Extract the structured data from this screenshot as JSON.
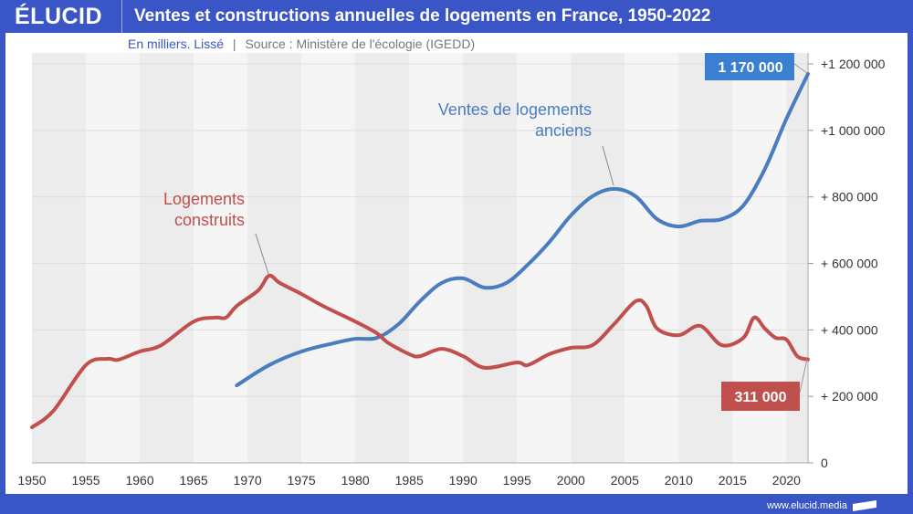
{
  "header": {
    "logo": "ÉLUCID",
    "title": "Ventes et constructions annuelles de logements en France, 1950-2022"
  },
  "subtitle": {
    "unit": "En milliers. Lissé",
    "separator": "|",
    "source": "Source : Ministère de l'écologie (IGEDD)"
  },
  "footer": {
    "url": "www.elucid.media"
  },
  "chart_data": {
    "type": "line",
    "title": "Ventes et constructions annuelles de logements en France, 1950-2022",
    "xlim": [
      1950,
      2022
    ],
    "ylim": [
      0,
      1200000
    ],
    "x_ticks": [
      1950,
      1955,
      1960,
      1965,
      1970,
      1975,
      1980,
      1985,
      1990,
      1995,
      2000,
      2005,
      2010,
      2015,
      2020
    ],
    "y_ticks": [
      {
        "v": 0,
        "label": "0"
      },
      {
        "v": 200000,
        "label": "+ 200 000"
      },
      {
        "v": 400000,
        "label": "+ 400 000"
      },
      {
        "v": 600000,
        "label": "+ 600 000"
      },
      {
        "v": 800000,
        "label": "+ 800 000"
      },
      {
        "v": 1000000,
        "label": "+1 000 000"
      },
      {
        "v": 1200000,
        "label": "+1 200 000"
      }
    ],
    "series": [
      {
        "name": "Ventes de logements anciens",
        "label_lines": [
          "Ventes de logements",
          "anciens"
        ],
        "color": "#4a7cc0",
        "end_label": "1 170 000",
        "end_color": "#3a7fd0",
        "x": [
          1969,
          1972,
          1975,
          1978,
          1980,
          1982,
          1984,
          1986,
          1988,
          1990,
          1992,
          1994,
          1996,
          1998,
          2000,
          2002,
          2004,
          2006,
          2008,
          2010,
          2012,
          2014,
          2016,
          2018,
          2020,
          2022
        ],
        "y": [
          233000,
          294000,
          335000,
          360000,
          373000,
          376000,
          417000,
          486000,
          541000,
          555000,
          527000,
          541000,
          596000,
          664000,
          744000,
          802000,
          824000,
          802000,
          733000,
          711000,
          728000,
          733000,
          774000,
          884000,
          1035000,
          1170000
        ]
      },
      {
        "name": "Logements construits",
        "label_lines": [
          "Logements",
          "construits"
        ],
        "color": "#c0504d",
        "end_label": "311 000",
        "end_color": "#c0504d",
        "x": [
          1950,
          1952,
          1955,
          1957,
          1958,
          1960,
          1962,
          1965,
          1967,
          1968,
          1969,
          1971,
          1972,
          1973,
          1975,
          1977,
          1980,
          1982,
          1983,
          1985,
          1986,
          1988,
          1990,
          1992,
          1995,
          1996,
          1998,
          2000,
          2002,
          2004,
          2006,
          2007,
          2008,
          2010,
          2012,
          2014,
          2016,
          2017,
          2018,
          2019,
          2020,
          2021,
          2022
        ],
        "y": [
          107000,
          157000,
          294000,
          313000,
          310000,
          335000,
          354000,
          425000,
          437000,
          437000,
          472000,
          519000,
          563000,
          541000,
          508000,
          472000,
          425000,
          390000,
          362000,
          327000,
          321000,
          343000,
          321000,
          286000,
          302000,
          294000,
          327000,
          346000,
          354000,
          417000,
          486000,
          472000,
          404000,
          384000,
          412000,
          354000,
          376000,
          437000,
          404000,
          376000,
          371000,
          321000,
          311000
        ]
      }
    ]
  }
}
